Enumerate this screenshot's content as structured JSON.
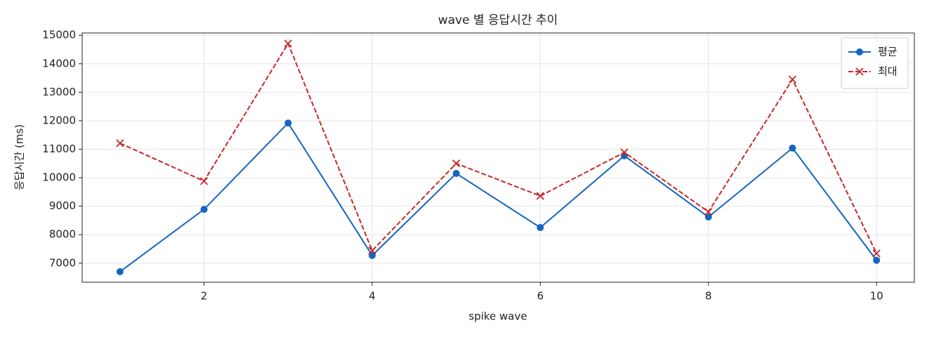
{
  "chart_data": {
    "type": "line",
    "title": "wave 별 응답시간 추이",
    "x_label": "spike wave",
    "y_label": "응답시간 (ms)",
    "x": [
      1,
      2,
      3,
      4,
      5,
      6,
      7,
      8,
      9,
      10
    ],
    "series": [
      {
        "name": "평균",
        "color": "#1565c0",
        "marker": "circle",
        "dash": "solid",
        "values": [
          6700,
          8890,
          11920,
          7270,
          10150,
          8250,
          10770,
          8620,
          11040,
          7100
        ]
      },
      {
        "name": "최대",
        "color": "#c62828",
        "marker": "x",
        "dash": "dashed",
        "values": [
          11210,
          9880,
          14710,
          7440,
          10500,
          9360,
          10890,
          8800,
          13450,
          7340
        ]
      }
    ],
    "xlim": [
      0.55,
      10.45
    ],
    "xticks": [
      2,
      4,
      6,
      8,
      10
    ],
    "ylim": [
      6330,
      15080
    ],
    "yticks": [
      7000,
      8000,
      9000,
      10000,
      11000,
      12000,
      13000,
      14000,
      15000
    ],
    "grid": true,
    "legend": "upper right"
  }
}
